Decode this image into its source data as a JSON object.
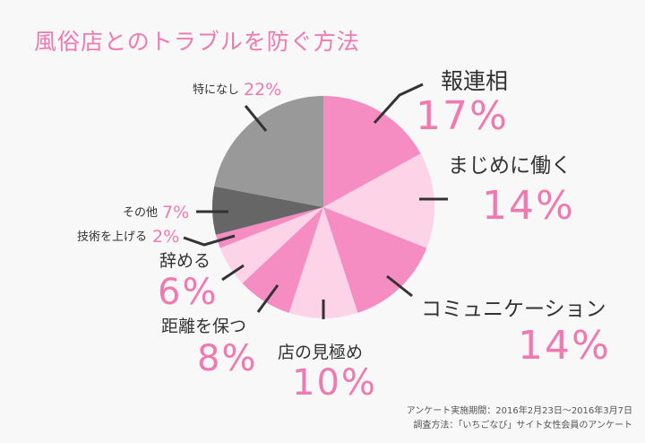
{
  "chart_data": {
    "type": "pie",
    "title": "風俗店とのトラブルを防ぐ方法",
    "start": "top",
    "direction": "clockwise",
    "slices": [
      {
        "label": "報連相",
        "value": 17,
        "display": "17%",
        "color": "#f58cc2"
      },
      {
        "label": "まじめに働く",
        "value": 14,
        "display": "14%",
        "color": "#fcd3e7"
      },
      {
        "label": "コミュニケーション",
        "value": 14,
        "display": "14%",
        "color": "#f58cc2"
      },
      {
        "label": "店の見極め",
        "value": 10,
        "display": "10%",
        "color": "#fcd3e7"
      },
      {
        "label": "距離を保つ",
        "value": 8,
        "display": "8%",
        "color": "#f58cc2"
      },
      {
        "label": "辞める",
        "value": 6,
        "display": "6%",
        "color": "#fcd3e7"
      },
      {
        "label": "技術を上げる",
        "value": 2,
        "display": "2%",
        "color": "#f58cc2"
      },
      {
        "label": "その他",
        "value": 7,
        "display": "7%",
        "color": "#666666"
      },
      {
        "label": "特になし",
        "value": 22,
        "display": "22%",
        "color": "#999999"
      }
    ]
  },
  "notes": {
    "period": "アンケート実施期間：2016年2月23日～2016年3月7日",
    "method": "調査方法：「いちごなび」サイト女性会員のアンケート"
  }
}
